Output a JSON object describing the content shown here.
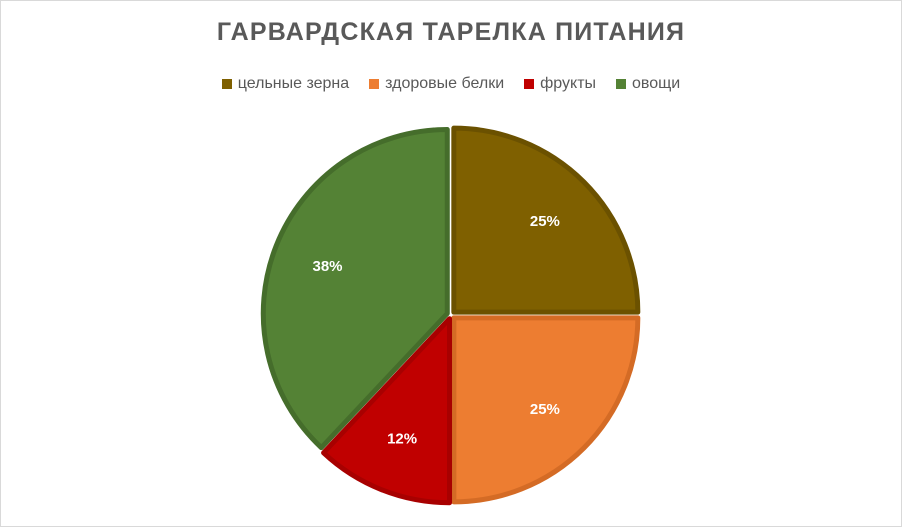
{
  "chart_data": {
    "type": "pie",
    "title": "ГАРВАРДСКАЯ ТАРЕЛКА ПИТАНИЯ",
    "legend_position": "top",
    "categories": [
      "цельные зерна",
      "здоровые белки",
      "фрукты",
      "овощи"
    ],
    "values": [
      25,
      25,
      12,
      38
    ],
    "data_labels": [
      "25%",
      "25%",
      "12%",
      "38%"
    ],
    "colors": [
      "#7f6000",
      "#ed7d31",
      "#c00000",
      "#548235"
    ],
    "edge_colors": [
      "#6b5100",
      "#d46b25",
      "#a80000",
      "#456d2b"
    ],
    "start_angle_deg": 0,
    "direction": "clockwise"
  }
}
